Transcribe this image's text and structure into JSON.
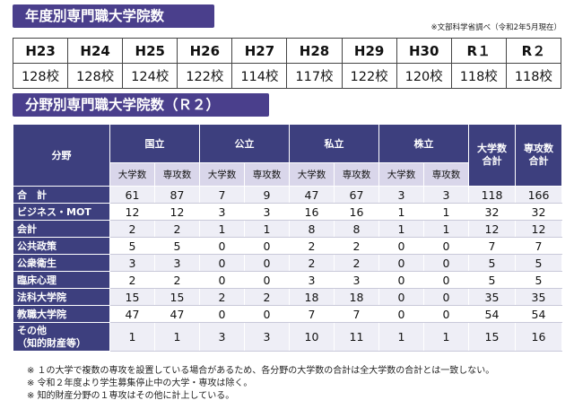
{
  "title1": "年度別専門職大学院数",
  "source_note": "※文部科学省調べ（令和2年5月現在）",
  "years": [
    {
      "year": "H23",
      "count": "128校"
    },
    {
      "year": "H24",
      "count": "128校"
    },
    {
      "year": "H25",
      "count": "124校"
    },
    {
      "year": "H26",
      "count": "122校"
    },
    {
      "year": "H27",
      "count": "114校"
    },
    {
      "year": "H28",
      "count": "117校"
    },
    {
      "year": "H29",
      "count": "122校"
    },
    {
      "year": "H30",
      "count": "120校"
    },
    {
      "year": "R１",
      "count": "118校"
    },
    {
      "year": "R２",
      "count": "118校"
    }
  ],
  "title2": "分野別専門職大学院数（Ｒ２）",
  "header": {
    "field": "分野",
    "national": "国立",
    "public": "公立",
    "private": "私立",
    "corporate": "株立",
    "total_univ": "大学数合計",
    "total_major": "専攻数合計",
    "sub_univ": "大学数",
    "sub_major": "専攻数"
  },
  "rows": [
    {
      "label": "合　計",
      "values": [
        "61",
        "87",
        "7",
        "9",
        "47",
        "67",
        "3",
        "3",
        "118",
        "166"
      ]
    },
    {
      "label": "ビジネス・MOT",
      "values": [
        "12",
        "12",
        "3",
        "3",
        "16",
        "16",
        "1",
        "1",
        "32",
        "32"
      ]
    },
    {
      "label": "会計",
      "values": [
        "2",
        "2",
        "1",
        "1",
        "8",
        "8",
        "1",
        "1",
        "12",
        "12"
      ]
    },
    {
      "label": "公共政策",
      "values": [
        "5",
        "5",
        "0",
        "0",
        "2",
        "2",
        "0",
        "0",
        "7",
        "7"
      ]
    },
    {
      "label": "公衆衛生",
      "values": [
        "3",
        "3",
        "0",
        "0",
        "2",
        "2",
        "0",
        "0",
        "5",
        "5"
      ]
    },
    {
      "label": "臨床心理",
      "values": [
        "2",
        "2",
        "0",
        "0",
        "3",
        "3",
        "0",
        "0",
        "5",
        "5"
      ]
    },
    {
      "label": "法科大学院",
      "values": [
        "15",
        "15",
        "2",
        "2",
        "18",
        "18",
        "0",
        "0",
        "35",
        "35"
      ]
    },
    {
      "label": "教職大学院",
      "values": [
        "47",
        "47",
        "0",
        "0",
        "7",
        "7",
        "0",
        "0",
        "54",
        "54"
      ]
    },
    {
      "label": "その他（知的財産等）",
      "values": [
        "1",
        "1",
        "3",
        "3",
        "10",
        "11",
        "1",
        "1",
        "15",
        "16"
      ]
    }
  ],
  "notes": [
    "※ １の大学で複数の専攻を設置している場合があるため、各分野の大学数の合計は全大学数の合計とは一致しない。",
    "※ 令和２年度より学生募集停止中の大学・専攻は除く。",
    "※ 知的財産分野の１専攻はその他に計上している。"
  ]
}
